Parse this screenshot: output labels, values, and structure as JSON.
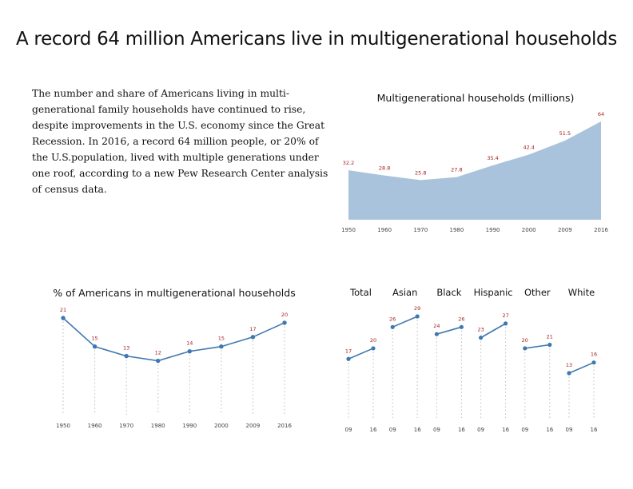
{
  "page": {
    "title": "A record 64 million Americans live in multigenerational households",
    "paragraph": "The number and share of Americans living in multi-generational family households have continued to rise, despite improvements in the U.S. economy since the Great Recession. In 2016, a record 64 million people, or 20% of the U.S.population, lived with multiple generations under one roof, according to a new Pew Research Center analysis of census data."
  },
  "colors": {
    "area_fill": "#a9c3dc",
    "line": "#3f78b0",
    "label": "#a32020",
    "guide": "#bbbbbb"
  },
  "chart_data": [
    {
      "type": "area",
      "title": "Multigenerational households (millions)",
      "x": [
        "1950",
        "1960",
        "1970",
        "1980",
        "1990",
        "2000",
        "2009",
        "2016"
      ],
      "values": [
        32.2,
        28.8,
        25.8,
        27.8,
        35.4,
        42.4,
        51.5,
        64
      ],
      "labels": [
        "32.2",
        "28.8",
        "25.8",
        "27.8",
        "35.4",
        "42.4",
        "51.5",
        "64"
      ],
      "ylim": [
        0,
        64
      ],
      "grid": false
    },
    {
      "type": "line",
      "title": "% of Americans in multigenerational households",
      "x": [
        "1950",
        "1960",
        "1970",
        "1980",
        "1990",
        "2000",
        "2009",
        "2016"
      ],
      "values": [
        21,
        15,
        13,
        12,
        14,
        15,
        17,
        20
      ],
      "ylim": [
        0,
        21
      ],
      "grid": false
    },
    {
      "type": "line",
      "title": "",
      "categories": [
        "09",
        "16"
      ],
      "series": [
        {
          "name": "Total",
          "values": [
            17,
            20
          ]
        },
        {
          "name": "Asian",
          "values": [
            26,
            29
          ]
        },
        {
          "name": "Black",
          "values": [
            24,
            26
          ]
        },
        {
          "name": "Hispanic",
          "values": [
            23,
            27
          ]
        },
        {
          "name": "Other",
          "values": [
            20,
            21
          ]
        },
        {
          "name": "White",
          "values": [
            13,
            16
          ]
        }
      ],
      "ylim": [
        0,
        29
      ],
      "grid": false
    }
  ]
}
